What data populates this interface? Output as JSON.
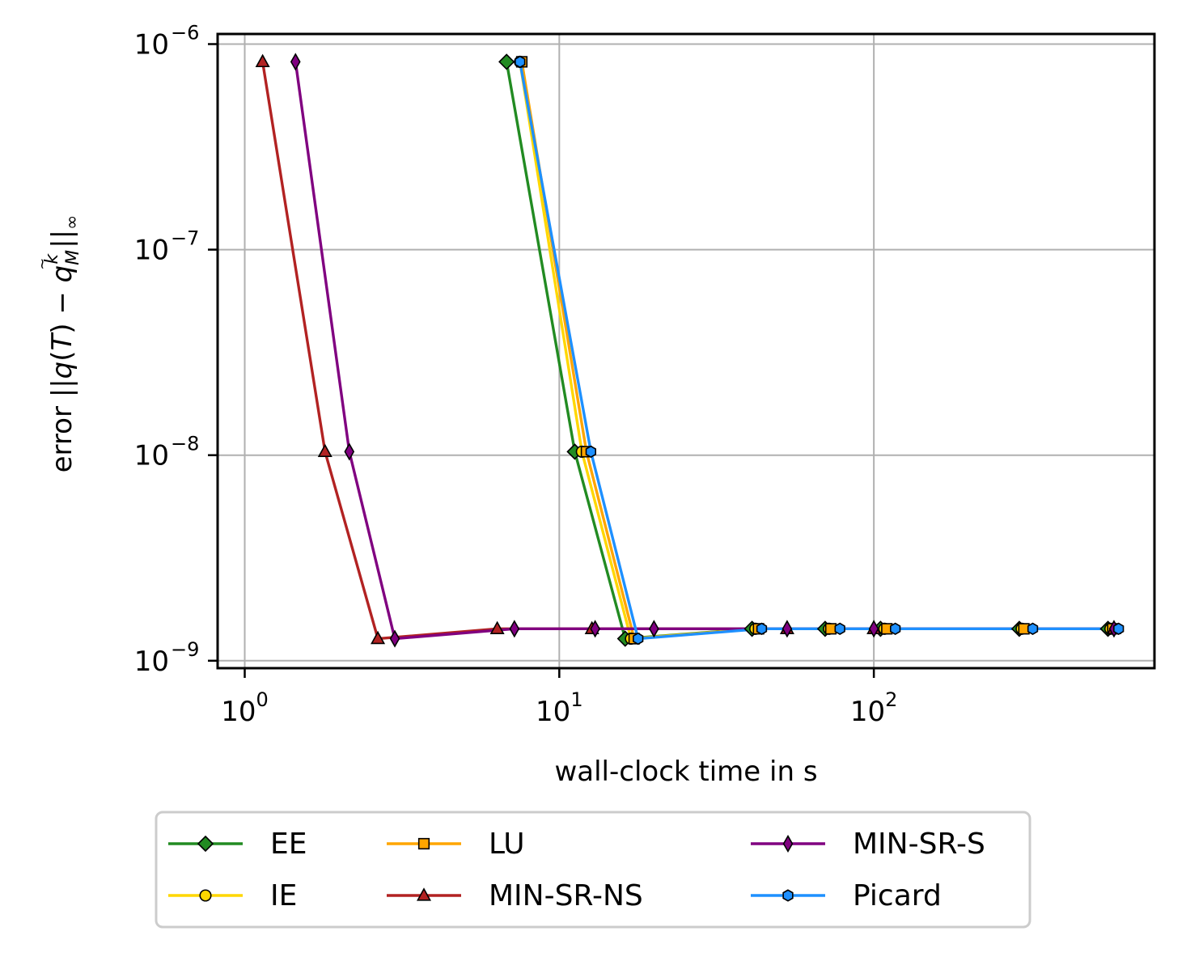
{
  "chart_data": {
    "type": "line",
    "xlabel": "wall-clock time in s",
    "ylabel_parts": {
      "prefix": "error ||",
      "q": "q",
      "paren_open": "(",
      "T": "T",
      "paren_close": ")",
      "minus": " − ",
      "qhat": "q",
      "tilde": "~",
      "sup_k": "k",
      "sub_M": "M",
      "bars": "||",
      "sub_inf": "∞"
    },
    "x_scale": "log",
    "y_scale": "log",
    "xlim": [
      0.82,
      780
    ],
    "ylim": [
      9.2e-10,
      1.12e-06
    ],
    "x_ticks": [
      {
        "value": 1,
        "base": "10",
        "exp": "0"
      },
      {
        "value": 10,
        "base": "10",
        "exp": "1"
      },
      {
        "value": 100,
        "base": "10",
        "exp": "2"
      }
    ],
    "y_ticks": [
      {
        "value": 1e-09,
        "base": "10",
        "exp": "−9"
      },
      {
        "value": 1e-08,
        "base": "10",
        "exp": "−8"
      },
      {
        "value": 1e-07,
        "base": "10",
        "exp": "−7"
      },
      {
        "value": 1e-06,
        "base": "10",
        "exp": "−6"
      }
    ],
    "grid": true,
    "legend_placement": "below, 3 columns",
    "series": [
      {
        "name": "EE",
        "color": "#228b22",
        "marker": "diamond",
        "x": [
          6.8,
          11.2,
          16.2,
          41,
          70,
          105,
          290,
          555
        ],
        "y": [
          8.2e-07,
          1.04e-08,
          1.28e-09,
          1.43e-09,
          1.43e-09,
          1.43e-09,
          1.43e-09,
          1.43e-09
        ]
      },
      {
        "name": "IE",
        "color": "#ffd700",
        "marker": "circle",
        "x": [
          7.5,
          11.8,
          16.9,
          42,
          72,
          108,
          295,
          565
        ],
        "y": [
          8.2e-07,
          1.04e-08,
          1.28e-09,
          1.43e-09,
          1.43e-09,
          1.43e-09,
          1.43e-09,
          1.43e-09
        ]
      },
      {
        "name": "LU",
        "color": "#ffa500",
        "marker": "square",
        "x": [
          7.6,
          12.2,
          17.3,
          43,
          73,
          110,
          300,
          575
        ],
        "y": [
          8.2e-07,
          1.04e-08,
          1.28e-09,
          1.43e-09,
          1.43e-09,
          1.43e-09,
          1.43e-09,
          1.43e-09
        ]
      },
      {
        "name": "MIN-SR-NS",
        "color": "#b22222",
        "marker": "triangle",
        "x": [
          1.14,
          1.8,
          2.65,
          6.35,
          12.7,
          53,
          100,
          580
        ],
        "y": [
          8.2e-07,
          1.04e-08,
          1.28e-09,
          1.43e-09,
          1.43e-09,
          1.43e-09,
          1.43e-09,
          1.43e-09
        ]
      },
      {
        "name": "MIN-SR-S",
        "color": "#800080",
        "marker": "thin_diamond",
        "x": [
          1.45,
          2.15,
          3.0,
          7.2,
          13.0,
          20,
          53,
          100,
          580
        ],
        "y": [
          8.2e-07,
          1.04e-08,
          1.28e-09,
          1.43e-09,
          1.43e-09,
          1.43e-09,
          1.43e-09,
          1.43e-09,
          1.43e-09
        ]
      },
      {
        "name": "Picard",
        "color": "#1e90ff",
        "marker": "hexagon",
        "x": [
          7.5,
          12.6,
          17.8,
          44,
          78,
          117,
          320,
          600
        ],
        "y": [
          8.2e-07,
          1.04e-08,
          1.28e-09,
          1.43e-09,
          1.43e-09,
          1.43e-09,
          1.43e-09,
          1.43e-09
        ]
      }
    ]
  }
}
